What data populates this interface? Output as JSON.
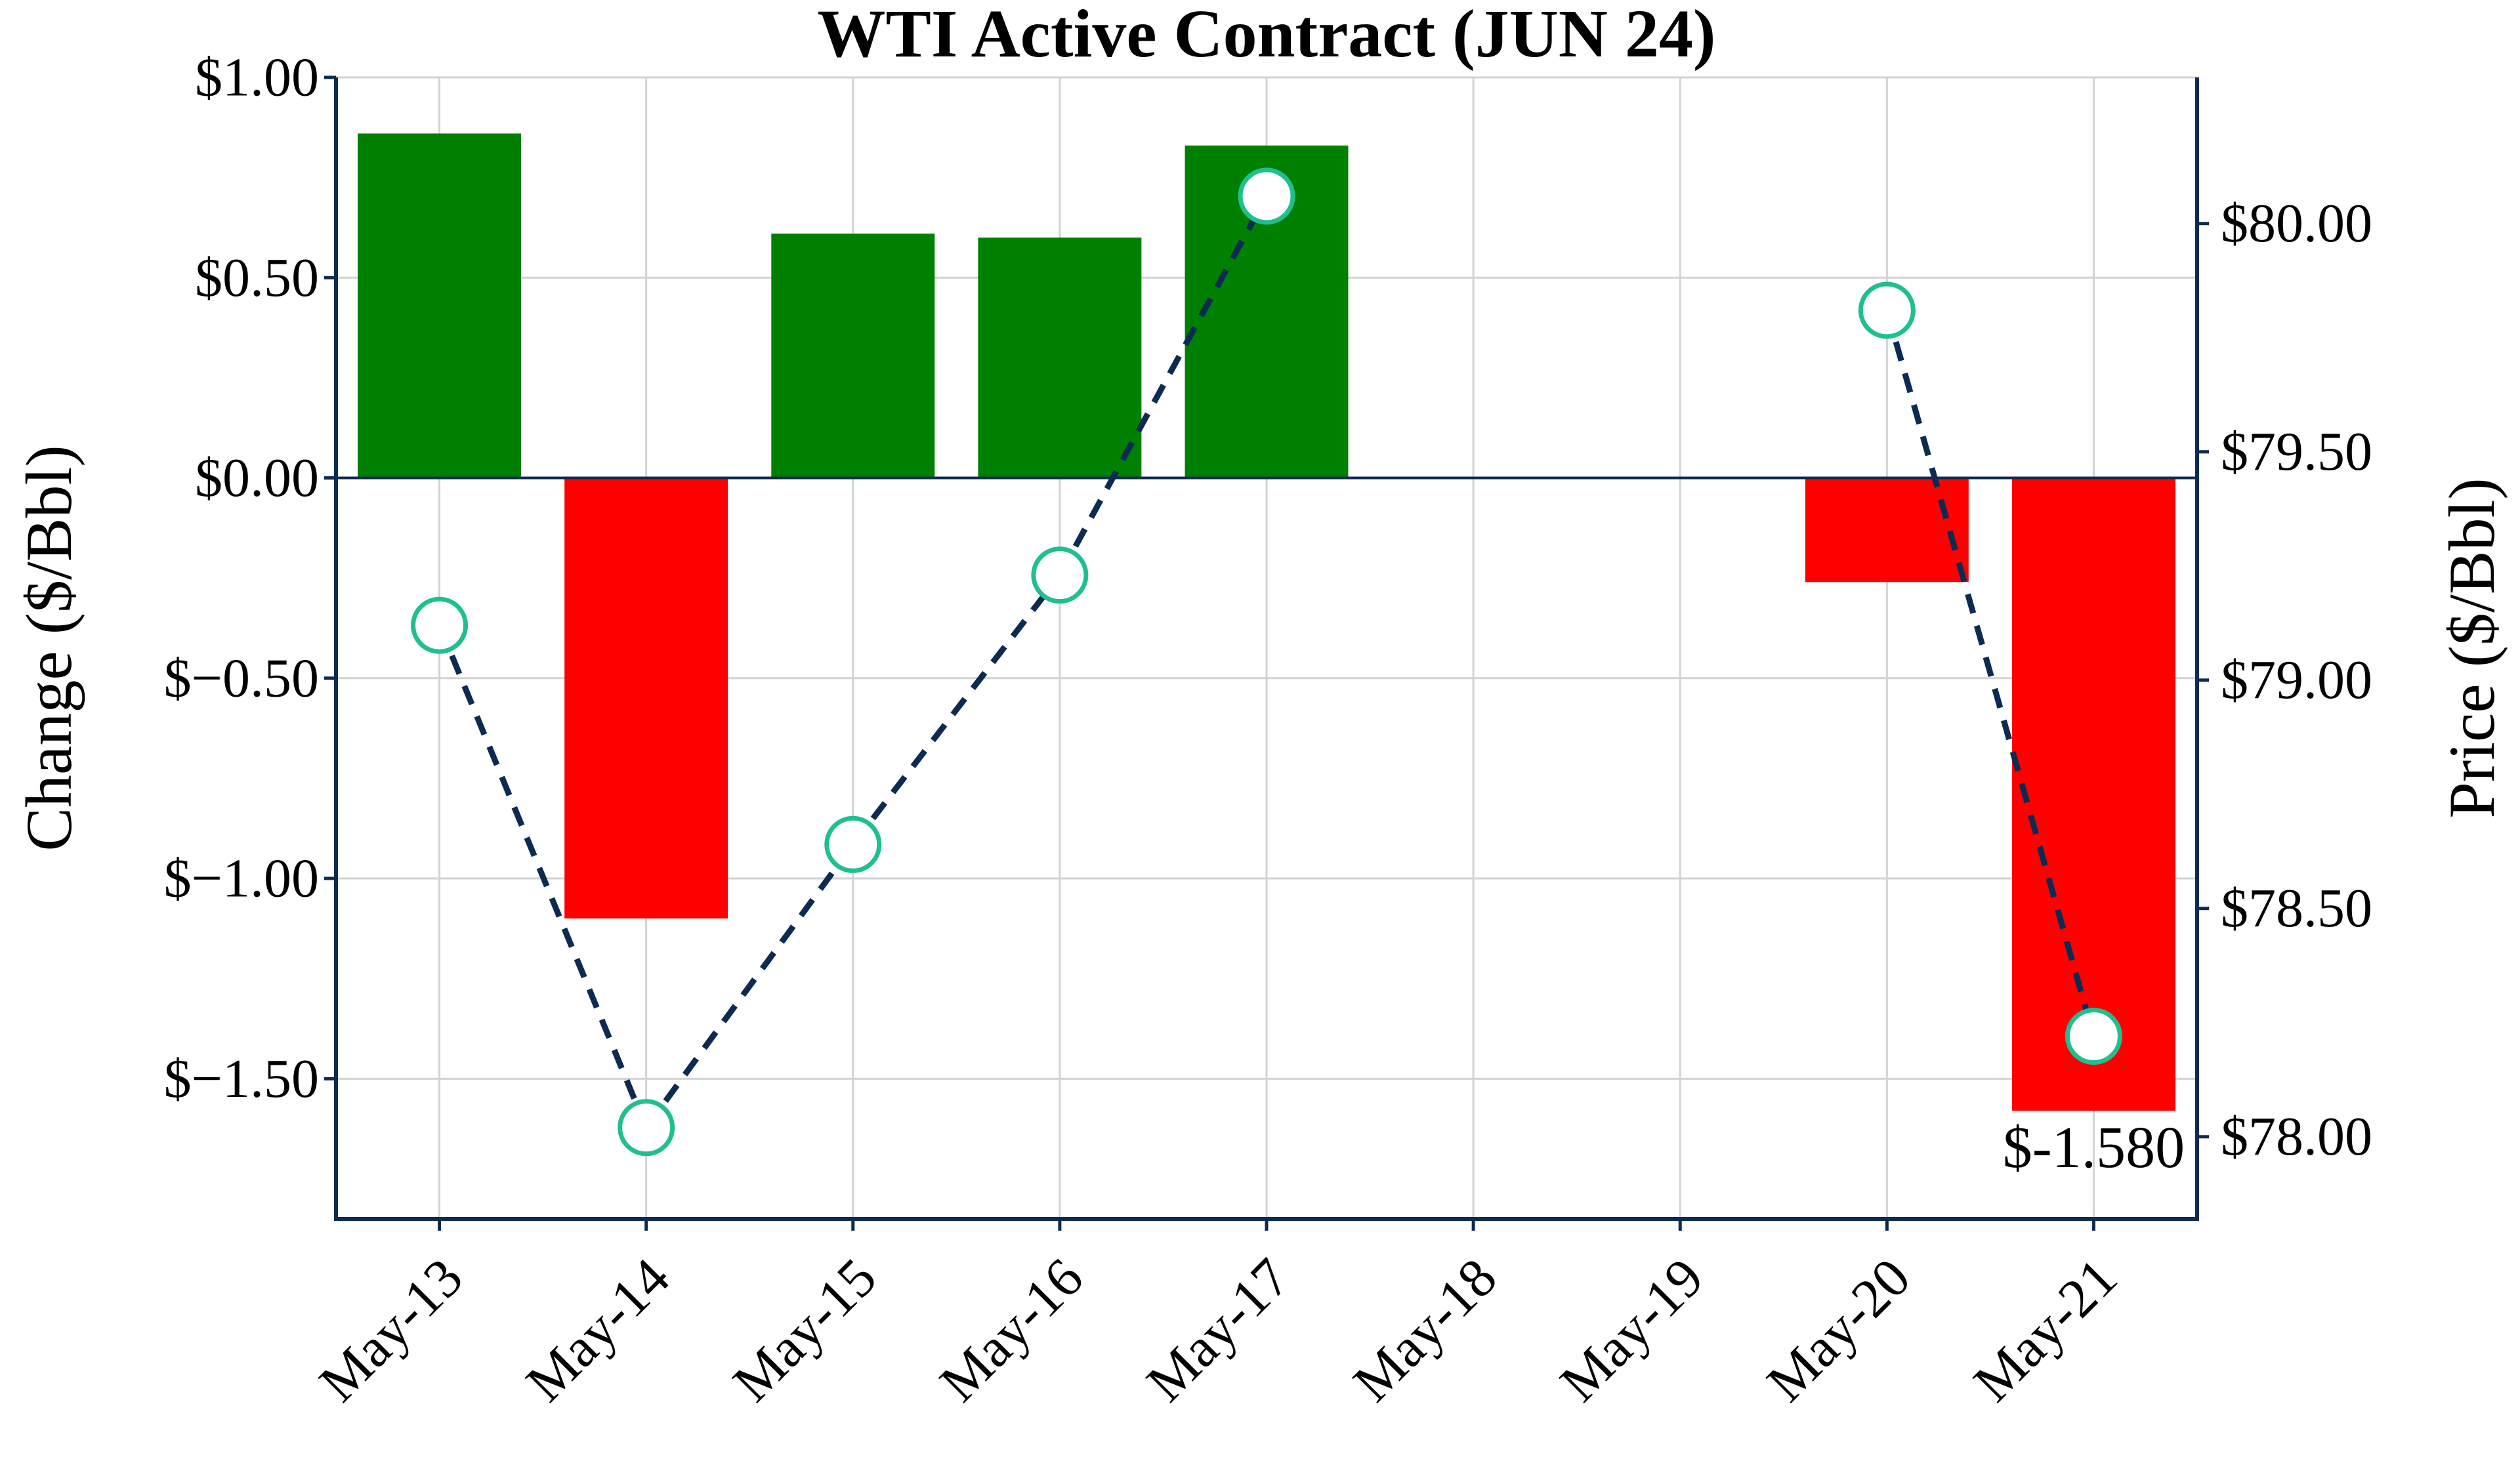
{
  "chart_data": {
    "type": "bar",
    "title": "WTI Active Contract (JUN 24)",
    "categories": [
      "May-13",
      "May-14",
      "May-15",
      "May-16",
      "May-17",
      "May-18",
      "May-19",
      "May-20",
      "May-21"
    ],
    "y_left": {
      "label": "Change ($/Bbl)",
      "ylim": [
        -1.85,
        1.0
      ],
      "ticks": [
        1.0,
        0.5,
        0.0,
        -0.5,
        -1.0,
        -1.5
      ],
      "tick_labels": [
        "$1.00",
        "$0.50",
        "$0.00",
        "$−0.50",
        "$−1.00",
        "$−1.50"
      ]
    },
    "y_right": {
      "label": "Price ($/Bbl)",
      "ylim": [
        77.82,
        80.32
      ],
      "ticks": [
        80.0,
        79.5,
        79.0,
        78.5,
        78.0
      ],
      "tick_labels": [
        "$80.00",
        "$79.50",
        "$79.00",
        "$78.50",
        "$78.00"
      ]
    },
    "series": [
      {
        "type": "bar",
        "axis": "left",
        "values": [
          0.86,
          -1.1,
          0.61,
          0.6,
          0.83,
          null,
          null,
          -0.26,
          -1.58
        ]
      },
      {
        "type": "line",
        "axis": "right",
        "values": [
          79.12,
          78.02,
          78.64,
          79.23,
          80.06,
          null,
          null,
          79.81,
          78.22
        ]
      }
    ],
    "annotations": [
      {
        "category": "May-21",
        "text": "$-1.580"
      }
    ],
    "colors": {
      "positive_bar": "#008000",
      "negative_bar": "#ff0000",
      "line": "#0d2b52",
      "marker_edge": "#1fbf8f",
      "marker_fill": "#ffffff",
      "axis": "#0d2b52"
    },
    "grid": true
  }
}
